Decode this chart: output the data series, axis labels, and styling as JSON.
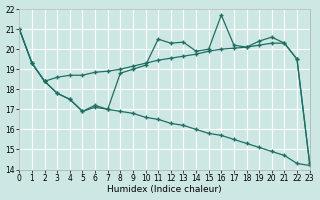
{
  "xlabel": "Humidex (Indice chaleur)",
  "xlim": [
    0,
    23
  ],
  "ylim": [
    14,
    22
  ],
  "yticks": [
    14,
    15,
    16,
    17,
    18,
    19,
    20,
    21,
    22
  ],
  "xticks": [
    0,
    1,
    2,
    3,
    4,
    5,
    6,
    7,
    8,
    9,
    10,
    11,
    12,
    13,
    14,
    15,
    16,
    17,
    18,
    19,
    20,
    21,
    22,
    23
  ],
  "bg_color": "#cde8e4",
  "grid_color": "#b0d8d0",
  "line_color": "#1e6e64",
  "line1_x": [
    0,
    1,
    2,
    3,
    4,
    5,
    6,
    7,
    8,
    9,
    10,
    11,
    12,
    13,
    14,
    15,
    16,
    17,
    18,
    19,
    20,
    21,
    22,
    23
  ],
  "line1_y": [
    21.0,
    19.3,
    18.4,
    17.8,
    17.5,
    16.9,
    17.1,
    17.0,
    16.9,
    16.8,
    16.6,
    16.5,
    16.3,
    16.2,
    16.0,
    15.8,
    15.7,
    15.5,
    15.3,
    15.1,
    14.9,
    14.7,
    14.3,
    14.2
  ],
  "line2_x": [
    0,
    1,
    2,
    3,
    4,
    5,
    6,
    7,
    8,
    9,
    10,
    11,
    12,
    13,
    14,
    15,
    16,
    17,
    18,
    19,
    20,
    21,
    22,
    23
  ],
  "line2_y": [
    21.0,
    19.3,
    18.4,
    18.6,
    18.7,
    18.7,
    18.85,
    18.9,
    19.0,
    19.15,
    19.3,
    19.45,
    19.55,
    19.65,
    19.75,
    19.9,
    20.0,
    20.05,
    20.1,
    20.2,
    20.3,
    20.3,
    19.5,
    14.3
  ],
  "line3_x": [
    0,
    1,
    2,
    3,
    4,
    5,
    6,
    7,
    8,
    9,
    10,
    11,
    12,
    13,
    14,
    15,
    16,
    17,
    18,
    19,
    20,
    21,
    22,
    23
  ],
  "line3_y": [
    21.0,
    19.3,
    18.4,
    17.8,
    17.5,
    16.9,
    17.2,
    17.0,
    18.8,
    19.0,
    19.2,
    20.5,
    20.3,
    20.35,
    19.9,
    20.0,
    21.7,
    20.2,
    20.1,
    20.4,
    20.6,
    20.3,
    19.5,
    14.3
  ]
}
